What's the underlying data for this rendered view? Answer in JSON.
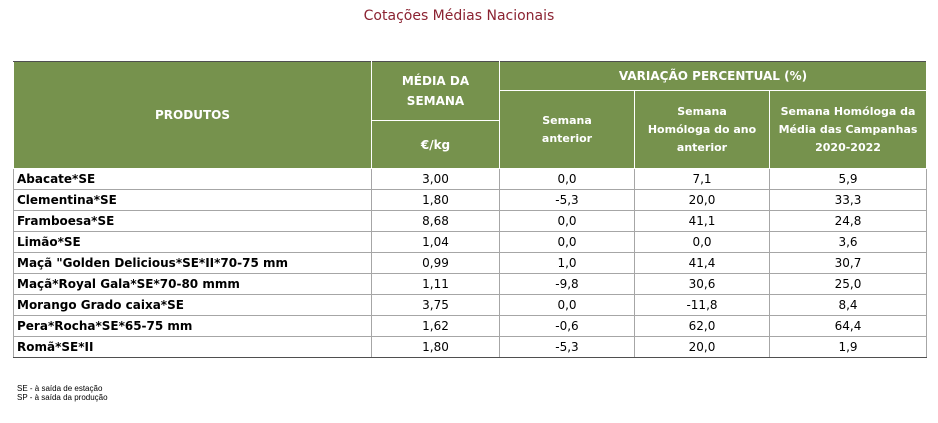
{
  "title": "Cotações Médias Nacionais",
  "table": {
    "header": {
      "produtos": "PRODUTOS",
      "media": "MÉDIA DA SEMANA",
      "unit": "€/kg",
      "variacao": "VARIAÇÃO PERCENTUAL (%)",
      "semana_anterior": "Semana anterior",
      "semana_homologa": "Semana Homóloga do ano anterior",
      "semana_homologa_media": "Semana Homóloga da Média das Campanhas 2020-2022"
    },
    "rows": [
      {
        "produto": "Abacate*SE",
        "media": "3,00",
        "anterior": "0,0",
        "homologa": "7,1",
        "campanhas": "5,9"
      },
      {
        "produto": "Clementina*SE",
        "media": "1,80",
        "anterior": "-5,3",
        "homologa": "20,0",
        "campanhas": "33,3"
      },
      {
        "produto": "Framboesa*SE",
        "media": "8,68",
        "anterior": "0,0",
        "homologa": "41,1",
        "campanhas": "24,8"
      },
      {
        "produto": "Limão*SE",
        "media": "1,04",
        "anterior": "0,0",
        "homologa": "0,0",
        "campanhas": "3,6"
      },
      {
        "produto": "Maçã \"Golden Delicious*SE*II*70-75 mm",
        "media": "0,99",
        "anterior": "1,0",
        "homologa": "41,4",
        "campanhas": "30,7"
      },
      {
        "produto": "Maçã*Royal Gala*SE*70-80 mmm",
        "media": "1,11",
        "anterior": "-9,8",
        "homologa": "30,6",
        "campanhas": "25,0"
      },
      {
        "produto": "Morango Grado caixa*SE",
        "media": "3,75",
        "anterior": "0,0",
        "homologa": "-11,8",
        "campanhas": "8,4"
      },
      {
        "produto": "Pera*Rocha*SE*65-75 mm",
        "media": "1,62",
        "anterior": "-0,6",
        "homologa": "62,0",
        "campanhas": "64,4"
      },
      {
        "produto": "Romã*SE*II",
        "media": "1,80",
        "anterior": "-5,3",
        "homologa": "20,0",
        "campanhas": "1,9"
      }
    ]
  },
  "notes": {
    "se": "SE - à saída de estação",
    "sp": "SP - à saída da produção"
  },
  "colors": {
    "header_bg": "#76924d",
    "title": "#8b2332"
  }
}
